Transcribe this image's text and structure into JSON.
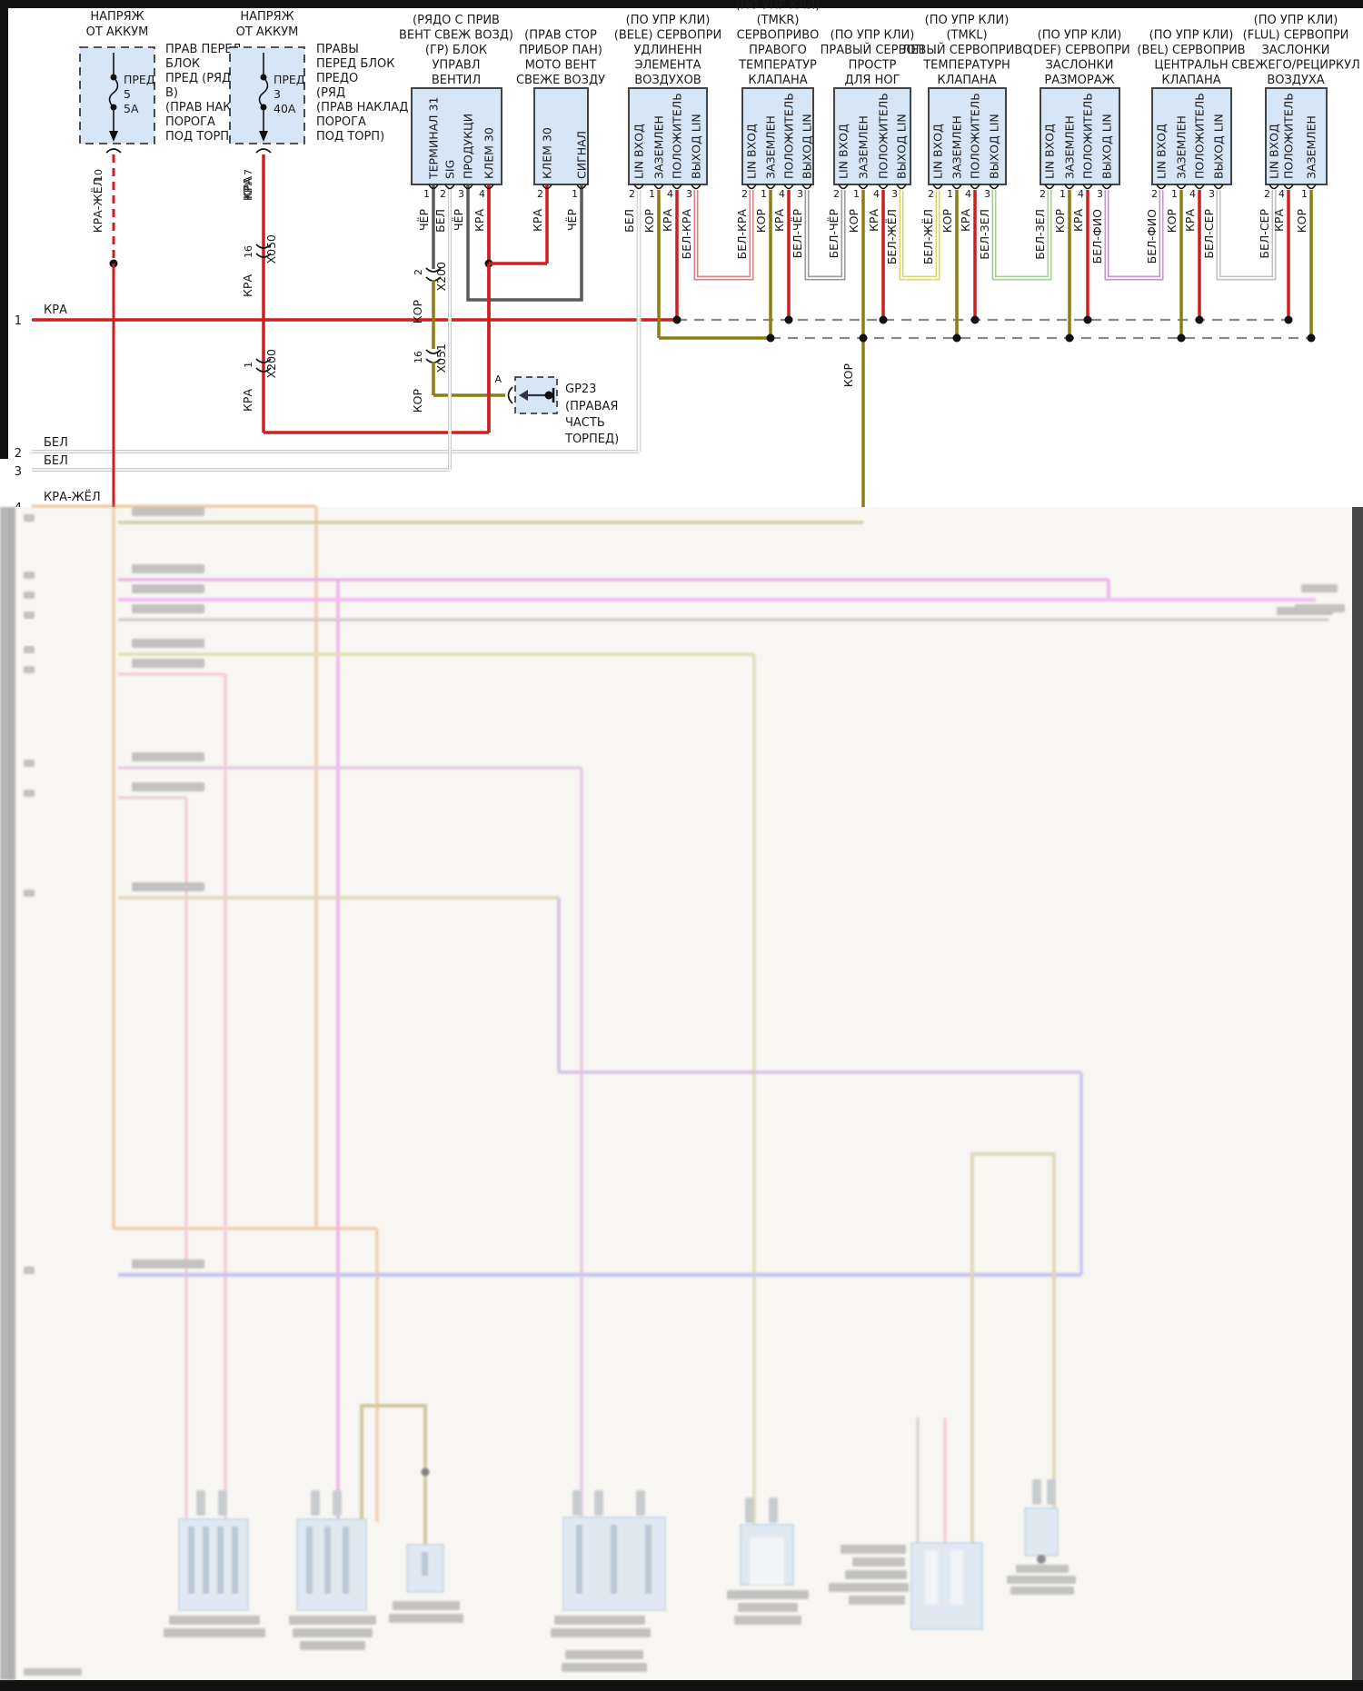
{
  "title": "wiring-diagram-climate-servos",
  "fuses": [
    {
      "header": [
        "НАПРЯЖ",
        "ОТ АККУМ"
      ],
      "name": [
        "ПРЕД",
        "5",
        "5А"
      ],
      "note": [
        "ПРАВ ПЕРЕД",
        "БЛОК",
        "ПРЕД (РЯД",
        "В)",
        "(ПРАВ НАКЛАД",
        "ПОРОГА",
        "ПОД ТОРП)"
      ],
      "pin": "10",
      "wire": "КРА-ЖЁЛ"
    },
    {
      "header": [
        "НАПРЯЖ",
        "ОТ АККУМ"
      ],
      "name": [
        "ПРЕД",
        "3",
        "40А"
      ],
      "note": [
        "ПРАВЫ",
        "ПЕРЕД БЛОК",
        "ПРЕДО",
        "(РЯД",
        "(ПРАВ НАКЛАД",
        "ПОРОГА",
        "ПОД ТОРП)"
      ],
      "pin": "7",
      "wire": "КРА"
    }
  ],
  "modules": [
    {
      "header": [
        "(РЯДО С ПРИВ",
        "ВЕНТ СВЕЖ ВОЗД)",
        "(ГР) БЛОК",
        "УПРАВЛ",
        "ВЕНТИЛ"
      ],
      "pins": [
        {
          "label": "ТЕРМИНАЛ 31",
          "num": "1",
          "wire": "ЧЁР"
        },
        {
          "label": "SIG",
          "num": "2",
          "wire": "БЕЛ"
        },
        {
          "label": "ПРОДУКЦИ",
          "num": "3",
          "wire": "ЧЁР"
        },
        {
          "label": "КЛЕМ 30",
          "num": "4",
          "wire": "КРА"
        }
      ]
    },
    {
      "header": [
        "(ПРАВ СТОР",
        "ПРИБОР ПАН)",
        "МОТО ВЕНТ",
        "СВЕЖЕ ВОЗДУ"
      ],
      "pins": [
        {
          "label": "КЛЕМ 30",
          "num": "2",
          "wire": "КРА"
        },
        {
          "label": "СИГНАЛ",
          "num": "1",
          "wire": "ЧЁР"
        }
      ]
    },
    {
      "header": [
        "(ПО УПР КЛИ)",
        "(BELE) СЕРВОПРИ",
        "УДЛИНЕНН",
        "ЭЛЕМЕНТА",
        "ВОЗДУХОВ"
      ],
      "pins": [
        {
          "label": "LIN ВХОД",
          "num": "2",
          "wire": "БЕЛ"
        },
        {
          "label": "ЗАЗЕМЛЕН",
          "num": "1",
          "wire": "КОР"
        },
        {
          "label": "ПОЛОЖИТЕЛЬ",
          "num": "4",
          "wire": "КРА"
        },
        {
          "label": "ВЫХОД LIN",
          "num": "3",
          "wire": "БЕЛ-КРА"
        }
      ]
    },
    {
      "header": [
        "(ПО УПР КЛИ)",
        "(TMKR)",
        "СЕРВОПРИВО",
        "ПРАВОГО",
        "ТЕМПЕРАТУР",
        "КЛАПАНА"
      ],
      "pins": [
        {
          "label": "LIN ВХОД",
          "num": "2",
          "wire": "БЕЛ-КРА"
        },
        {
          "label": "ЗАЗЕМЛЕН",
          "num": "1",
          "wire": "КОР"
        },
        {
          "label": "ПОЛОЖИТЕЛЬ",
          "num": "4",
          "wire": "КРА"
        },
        {
          "label": "ВЫХОД LIN",
          "num": "3",
          "wire": "БЕЛ-ЧЁР"
        }
      ]
    },
    {
      "header": [
        "(ПО УПР КЛИ)",
        "ПРАВЫЙ СЕРВОП",
        "ПРОСТР",
        "ДЛЯ НОГ"
      ],
      "pins": [
        {
          "label": "LIN ВХОД",
          "num": "2",
          "wire": "БЕЛ-ЧЁР"
        },
        {
          "label": "ЗАЗЕМЛЕН",
          "num": "1",
          "wire": "КОР"
        },
        {
          "label": "ПОЛОЖИТЕЛЬ",
          "num": "4",
          "wire": "КРА"
        },
        {
          "label": "ВЫХОД LIN",
          "num": "3",
          "wire": "БЕЛ-ЖЁЛ"
        }
      ]
    },
    {
      "header": [
        "(ПО УПР КЛИ)",
        "(TMKL)",
        "ЛЕВЫЙ СЕРВОПРИВО",
        "ТЕМПЕРАТУРН",
        "КЛАПАНА"
      ],
      "pins": [
        {
          "label": "LIN ВХОД",
          "num": "2",
          "wire": "БЕЛ-ЖЁЛ"
        },
        {
          "label": "ЗАЗЕМЛЕН",
          "num": "1",
          "wire": "КОР"
        },
        {
          "label": "ПОЛОЖИТЕЛЬ",
          "num": "4",
          "wire": "КРА"
        },
        {
          "label": "ВЫХОД LIN",
          "num": "3",
          "wire": "БЕЛ-ЗЕЛ"
        }
      ]
    },
    {
      "header": [
        "(ПО УПР КЛИ)",
        "(DEF) СЕРВОПРИ",
        "ЗАСЛОНКИ",
        "РАЗМОРАЖ"
      ],
      "pins": [
        {
          "label": "LIN ВХОД",
          "num": "2",
          "wire": "БЕЛ-ЗЕЛ"
        },
        {
          "label": "ЗАЗЕМЛЕН",
          "num": "1",
          "wire": "КОР"
        },
        {
          "label": "ПОЛОЖИТЕЛЬ",
          "num": "4",
          "wire": "КРА"
        },
        {
          "label": "ВЫХОД LIN",
          "num": "3",
          "wire": "БЕЛ-ФИО"
        }
      ]
    },
    {
      "header": [
        "(ПО УПР КЛИ)",
        "(BEL) СЕРВОПРИВ",
        "ЦЕНТРАЛЬН",
        "КЛАПАНА"
      ],
      "pins": [
        {
          "label": "LIN ВХОД",
          "num": "2",
          "wire": "БЕЛ-ФИО"
        },
        {
          "label": "ЗАЗЕМЛЕН",
          "num": "1",
          "wire": "КОР"
        },
        {
          "label": "ПОЛОЖИТЕЛЬ",
          "num": "4",
          "wire": "КРА"
        },
        {
          "label": "ВЫХОД LIN",
          "num": "3",
          "wire": "БЕЛ-СЕР"
        }
      ]
    },
    {
      "header": [
        "(ПО УПР КЛИ)",
        "(FLUL) СЕРВОПРИ",
        "ЗАСЛОНКИ",
        "СВЕЖЕГО/РЕЦИРКУЛ",
        "ВОЗДУХА"
      ],
      "pins": [
        {
          "label": "LIN ВХОД",
          "num": "2",
          "wire": "БЕЛ-СЕР"
        },
        {
          "label": "ПОЛОЖИТЕЛЬ",
          "num": "4",
          "wire": "КРА"
        },
        {
          "label": "ЗАЗЕМЛЕН",
          "num": "1",
          "wire": "КОР"
        }
      ]
    }
  ],
  "connectors": {
    "x050": {
      "id": "X050",
      "pin": "16"
    },
    "x200a": {
      "id": "X200",
      "pin": "1"
    },
    "x200b": {
      "id": "X200",
      "pin": "2"
    },
    "x051": {
      "id": "X051",
      "pin": "16"
    }
  },
  "ground": {
    "id": "GP23",
    "pin": "A",
    "note": [
      "(ПРАВАЯ",
      "ЧАСТЬ",
      "ТОРПЕД)"
    ]
  },
  "buses": [
    {
      "num": "1",
      "label": "КРА"
    },
    {
      "num": "2",
      "label": "БЕЛ"
    },
    {
      "num": "3",
      "label": "БЕЛ"
    },
    {
      "num": "4",
      "label": "КРА-ЖЁЛ"
    }
  ],
  "words": {
    "kra": "КРА",
    "kor": "КОР"
  },
  "colors": {
    "wire_red": "#cc1f1f",
    "wire_brown": "#8f7d14",
    "wire_black": "#5a5a5a",
    "wire_white": "#d9d9d9",
    "box_fill": "#d6e6f7",
    "dashed_bus": "#888888"
  }
}
